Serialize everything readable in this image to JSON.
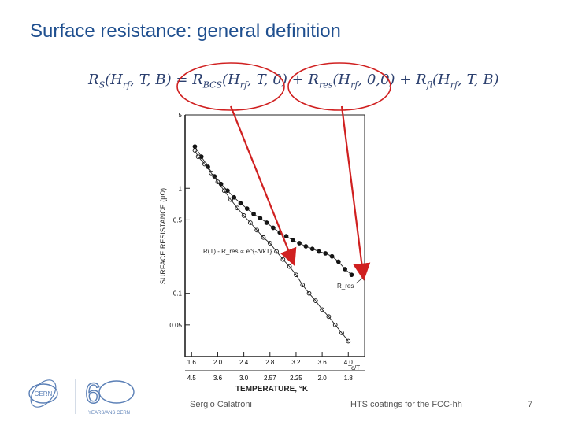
{
  "slide": {
    "title": "Surface resistance: general definition",
    "formula": {
      "lhs": "R_S(H_rf, T, B)",
      "term1": "R_BCS(H_rf, T, 0)",
      "term2": "R_res(H_rf, 0,0)",
      "term3": "R_fl(H_rf, T, B)"
    },
    "footer": {
      "author": "Sergio Calatroni",
      "topic": "HTS coatings for the FCC-hh",
      "page": "7"
    },
    "logo": {
      "left_text": "CERN",
      "right_text": "YEARS/ANS CERN"
    }
  },
  "chart_data": {
    "type": "scatter",
    "ylabel": "SURFACE RESISTANCE (µΩ)",
    "xlabel": "TEMPERATURE, °K",
    "y_scale": "log",
    "y_ticks": [
      "5",
      "1",
      "0.5",
      "0.1",
      "0.05"
    ],
    "x_ticks_top": [
      "1.6",
      "2.0",
      "2.4",
      "2.8",
      "3.2",
      "3.6",
      "4.0"
    ],
    "x_ticks_bottom": [
      "4.5",
      "3.6",
      "3.0",
      "2.57",
      "2.25",
      "2.0",
      "1.8"
    ],
    "x_top_unit": "Tc/T",
    "annotations": [
      "R(T) - R_res ∝ e^{-Δ/kT}",
      "R_res"
    ],
    "series": [
      {
        "marker": "filled",
        "points": [
          [
            1.65,
            2.5
          ],
          [
            1.75,
            2.0
          ],
          [
            1.85,
            1.6
          ],
          [
            1.95,
            1.3
          ],
          [
            2.05,
            1.1
          ],
          [
            2.15,
            0.95
          ],
          [
            2.25,
            0.82
          ],
          [
            2.35,
            0.72
          ],
          [
            2.45,
            0.64
          ],
          [
            2.55,
            0.57
          ],
          [
            2.65,
            0.52
          ],
          [
            2.75,
            0.47
          ],
          [
            2.85,
            0.42
          ],
          [
            2.95,
            0.38
          ],
          [
            3.05,
            0.35
          ],
          [
            3.15,
            0.32
          ],
          [
            3.25,
            0.3
          ],
          [
            3.35,
            0.28
          ],
          [
            3.45,
            0.265
          ],
          [
            3.55,
            0.25
          ],
          [
            3.65,
            0.24
          ],
          [
            3.75,
            0.225
          ],
          [
            3.85,
            0.2
          ],
          [
            3.95,
            0.17
          ],
          [
            4.05,
            0.15
          ]
        ]
      },
      {
        "marker": "open",
        "points": [
          [
            1.65,
            2.3
          ],
          [
            1.7,
            2.0
          ],
          [
            1.8,
            1.7
          ],
          [
            1.9,
            1.4
          ],
          [
            2.0,
            1.15
          ],
          [
            2.1,
            0.95
          ],
          [
            2.2,
            0.78
          ],
          [
            2.3,
            0.65
          ],
          [
            2.4,
            0.55
          ],
          [
            2.5,
            0.47
          ],
          [
            2.6,
            0.4
          ],
          [
            2.7,
            0.34
          ],
          [
            2.8,
            0.3
          ],
          [
            2.9,
            0.25
          ],
          [
            3.0,
            0.21
          ],
          [
            3.1,
            0.18
          ],
          [
            3.2,
            0.15
          ],
          [
            3.3,
            0.12
          ],
          [
            3.4,
            0.1
          ],
          [
            3.5,
            0.085
          ],
          [
            3.6,
            0.07
          ],
          [
            3.7,
            0.06
          ],
          [
            3.8,
            0.05
          ],
          [
            3.9,
            0.042
          ],
          [
            4.0,
            0.035
          ]
        ]
      }
    ]
  }
}
